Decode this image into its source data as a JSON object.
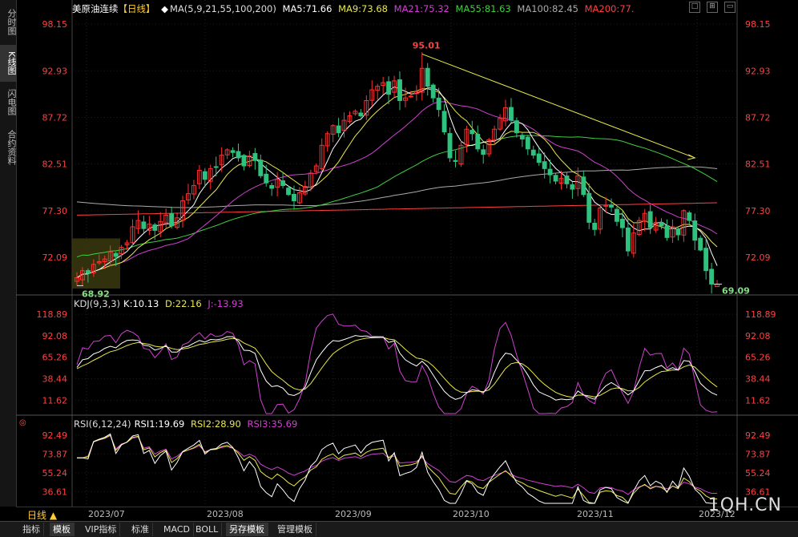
{
  "side_tabs": [
    {
      "label": "分时图",
      "active": false
    },
    {
      "label": "K线图",
      "active": true
    },
    {
      "label": "闪电图",
      "active": false
    },
    {
      "label": "合约资料",
      "active": false
    }
  ],
  "header": {
    "instrument": "美原油连续",
    "period_tag": "【日线】",
    "ma_label": "MA(5,9,21,55,100,200)",
    "ma_values": [
      {
        "text": "MA5:71.66",
        "color": "#ffffff"
      },
      {
        "text": "MA9:73.68",
        "color": "#e8e84a"
      },
      {
        "text": "MA21:75.32",
        "color": "#d040d0"
      },
      {
        "text": "MA55:81.63",
        "color": "#40d040"
      },
      {
        "text": "MA100:82.45",
        "color": "#aaaaaa"
      },
      {
        "text": "MA200:77.",
        "color": "#ff4040"
      }
    ]
  },
  "kdj_header": {
    "label": "KDJ(9,3,3)",
    "k": "K:10.13",
    "d": "D:22.16",
    "j": "J:-13.93"
  },
  "rsi_header": {
    "label": "RSI(6,12,24)",
    "r1": "RSI1:19.69",
    "r2": "RSI2:28.90",
    "r3": "RSI3:35.69"
  },
  "annotations": {
    "high": "95.01",
    "low_left": "68.92",
    "last": "69.09"
  },
  "date_labels": [
    "2023/07",
    "2023/08",
    "2023/09",
    "2023/10",
    "2023/11",
    "2023/12"
  ],
  "period_button": "日线 ▲",
  "watermark": "1QH.CN",
  "bottom_tabs": [
    {
      "label": "指标",
      "active": false
    },
    {
      "label": "模板",
      "active": true
    },
    {
      "label": "VIP指标",
      "active": false
    },
    {
      "label": "标准",
      "active": false
    },
    {
      "label": "MACD",
      "active": false
    },
    {
      "label": "BOLL",
      "active": false
    },
    {
      "label": "另存模板",
      "active": true
    },
    {
      "label": "管理模板",
      "active": false
    }
  ],
  "colors": {
    "up": "#ff3030",
    "down": "#2ec27e",
    "axis": "#ff4040",
    "ma5": "#ffffff",
    "ma9": "#e8e84a",
    "ma21": "#d040d0",
    "ma55": "#40d040",
    "ma100": "#aaaaaa",
    "ma200": "#ff4040"
  },
  "chart_data": [
    {
      "type": "candlestick",
      "title": "美原油连续【日线】",
      "y_ticks": [
        "98.15",
        "92.93",
        "87.72",
        "82.51",
        "77.30",
        "72.09"
      ],
      "ylim": [
        68.6,
        98.15
      ],
      "closes": [
        69.8,
        70.6,
        70.3,
        71.3,
        71.6,
        71.9,
        72.7,
        72.2,
        73.2,
        73.7,
        75.5,
        76.2,
        75.3,
        75.8,
        75.1,
        76.1,
        76.8,
        75.6,
        76.5,
        78.4,
        79.2,
        80.1,
        81.8,
        80.8,
        82.0,
        82.2,
        83.5,
        84.1,
        83.8,
        83.2,
        82.3,
        83.4,
        82.9,
        81.2,
        80.4,
        79.8,
        80.8,
        80.1,
        79.1,
        78.4,
        79.3,
        80.0,
        81.5,
        82.3,
        84.6,
        85.9,
        86.8,
        86.0,
        87.4,
        87.9,
        88.4,
        87.9,
        89.6,
        90.8,
        91.2,
        91.6,
        90.3,
        91.8,
        89.6,
        89.9,
        90.1,
        90.6,
        93.2,
        91.2,
        89.9,
        88.6,
        86.1,
        83.2,
        82.8,
        84.6,
        86.4,
        85.9,
        84.2,
        83.6,
        85.2,
        86.4,
        87.6,
        88.8,
        87.4,
        86.0,
        85.3,
        84.2,
        83.5,
        82.7,
        82.0,
        81.3,
        80.6,
        80.9,
        80.3,
        79.7,
        81.2,
        79.1,
        76.0,
        75.2,
        77.6,
        77.9,
        77.7,
        76.1,
        75.4,
        72.8,
        74.8,
        76.2,
        77.0,
        75.4,
        76.0,
        75.6,
        74.3,
        75.5,
        74.6,
        77.3,
        76.2,
        74.0,
        72.9,
        70.6,
        69.1,
        69.1
      ],
      "ma_series": [
        "MA5",
        "MA9",
        "MA21",
        "MA55",
        "MA100",
        "MA200"
      ],
      "annotations": [
        "95.01",
        "68.92",
        "69.09"
      ]
    },
    {
      "type": "line",
      "title": "KDJ(9,3,3)",
      "y_ticks": [
        "118.89",
        "92.08",
        "65.26",
        "38.44",
        "11.62"
      ],
      "ylim": [
        -5,
        125
      ],
      "series": [
        {
          "name": "K",
          "last": 10.13
        },
        {
          "name": "D",
          "last": 22.16
        },
        {
          "name": "J",
          "last": -13.93
        }
      ]
    },
    {
      "type": "line",
      "title": "RSI(6,12,24)",
      "y_ticks": [
        "92.49",
        "73.87",
        "55.24",
        "36.61"
      ],
      "ylim": [
        25,
        98
      ],
      "series": [
        {
          "name": "RSI1",
          "last": 19.69
        },
        {
          "name": "RSI2",
          "last": 28.9
        },
        {
          "name": "RSI3",
          "last": 35.69
        }
      ]
    }
  ]
}
